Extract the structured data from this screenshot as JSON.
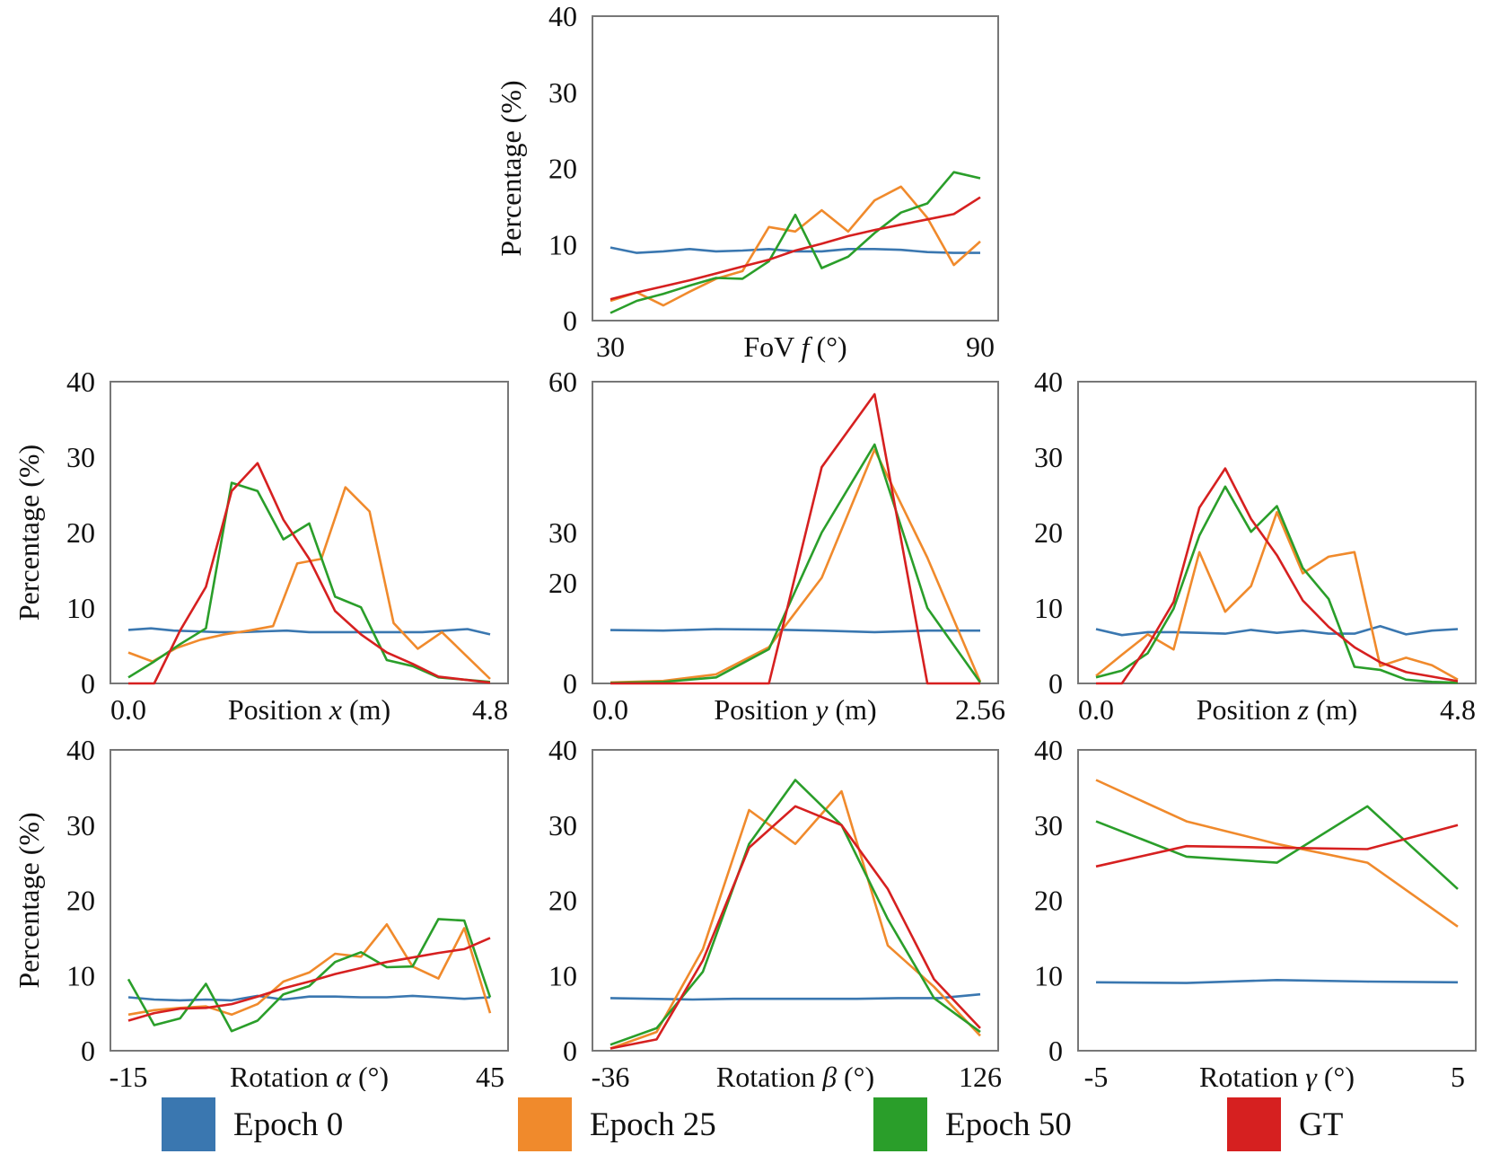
{
  "colors": {
    "epoch0": "#3a77b0",
    "epoch25": "#f08a2c",
    "epoch50": "#2a9e2a",
    "gt": "#d62020",
    "axis": "#777777"
  },
  "legend": [
    {
      "key": "epoch0",
      "label": "Epoch 0"
    },
    {
      "key": "epoch25",
      "label": "Epoch 25"
    },
    {
      "key": "epoch50",
      "label": "Epoch 50"
    },
    {
      "key": "gt",
      "label": "GT"
    }
  ],
  "chart_data": [
    {
      "id": "fov",
      "type": "line",
      "xlabel_main": "FoV ",
      "xlabel_var": "f",
      "xlabel_unit": " (°)",
      "ylabel": "Percentage (%)",
      "x_tick_labels": [
        "30",
        "90"
      ],
      "y_ticks": [
        "0",
        "10",
        "20",
        "30",
        "40"
      ],
      "ylim": [
        0,
        40
      ],
      "series": [
        {
          "key": "epoch0",
          "values": [
            9.6,
            8.9,
            9.1,
            9.4,
            9.1,
            9.2,
            9.4,
            9.1,
            9.1,
            9.4,
            9.4,
            9.3,
            9.0,
            8.9,
            8.9
          ]
        },
        {
          "key": "epoch25",
          "values": [
            2.6,
            3.7,
            2.0,
            3.8,
            5.5,
            6.5,
            12.3,
            11.7,
            14.5,
            11.7,
            15.8,
            17.6,
            13.5,
            7.3,
            10.4
          ]
        },
        {
          "key": "epoch50",
          "values": [
            1.0,
            2.6,
            3.5,
            4.6,
            5.6,
            5.5,
            7.8,
            13.9,
            6.9,
            8.4,
            11.5,
            14.2,
            15.4,
            19.5,
            18.7
          ]
        },
        {
          "key": "gt",
          "values": [
            2.8,
            3.7,
            4.5,
            5.3,
            6.2,
            7.1,
            8.0,
            9.2,
            10.1,
            11.1,
            11.9,
            12.6,
            13.3,
            14.0,
            16.2
          ]
        }
      ]
    },
    {
      "id": "posx",
      "type": "line",
      "xlabel_main": "Position ",
      "xlabel_var": "x",
      "xlabel_unit": " (m)",
      "ylabel": "Percentage (%)",
      "x_tick_labels": [
        "0.0",
        "4.8"
      ],
      "y_ticks": [
        "0",
        "10",
        "20",
        "30",
        "40"
      ],
      "ylim": [
        0,
        40
      ],
      "series": [
        {
          "key": "epoch0",
          "values": [
            7.1,
            7.3,
            7.0,
            6.9,
            6.8,
            6.8,
            6.9,
            7.0,
            6.8,
            6.8,
            6.8,
            6.8,
            6.8,
            6.8,
            7.0,
            7.2,
            6.5
          ]
        },
        {
          "key": "epoch25",
          "values": [
            4.1,
            2.9,
            4.7,
            5.8,
            6.5,
            7.0,
            7.6,
            15.9,
            16.5,
            26.0,
            22.8,
            8.0,
            4.6,
            6.8,
            3.7,
            0.6
          ]
        },
        {
          "key": "epoch50",
          "values": [
            0.8,
            2.9,
            5.2,
            7.3,
            26.6,
            25.5,
            19.1,
            21.2,
            11.5,
            10.1,
            3.1,
            2.3,
            0.8,
            0.5,
            0.2
          ]
        },
        {
          "key": "gt",
          "values": [
            0.0,
            0.0,
            7.0,
            12.8,
            25.5,
            29.2,
            21.7,
            16.5,
            9.6,
            6.5,
            4.1,
            2.6,
            0.9,
            0.5,
            0.1
          ]
        }
      ]
    },
    {
      "id": "posy",
      "type": "line",
      "xlabel_main": "Position ",
      "xlabel_var": "y",
      "xlabel_unit": " (m)",
      "ylabel": "",
      "x_tick_labels": [
        "0.0",
        "2.56"
      ],
      "y_ticks": [
        "0",
        "20",
        "30",
        "60"
      ],
      "ylim": [
        0,
        60
      ],
      "series": [
        {
          "key": "epoch0",
          "values": [
            10.6,
            10.5,
            10.8,
            10.7,
            10.5,
            10.2,
            10.5,
            10.5
          ]
        },
        {
          "key": "epoch25",
          "values": [
            0.2,
            0.5,
            1.8,
            7.2,
            21.0,
            46.5,
            25.0,
            0.3
          ]
        },
        {
          "key": "epoch50",
          "values": [
            0.1,
            0.3,
            1.2,
            6.8,
            30.0,
            47.5,
            15.0,
            0.2
          ]
        },
        {
          "key": "gt",
          "values": [
            0.0,
            0.0,
            0.0,
            0.0,
            43.0,
            57.5,
            0.0,
            0.0
          ]
        }
      ]
    },
    {
      "id": "posz",
      "type": "line",
      "xlabel_main": "Position ",
      "xlabel_var": "z",
      "xlabel_unit": " (m)",
      "ylabel": "",
      "x_tick_labels": [
        "0.0",
        "4.8"
      ],
      "y_ticks": [
        "0",
        "10",
        "20",
        "30",
        "40"
      ],
      "ylim": [
        0,
        40
      ],
      "series": [
        {
          "key": "epoch0",
          "values": [
            7.2,
            6.4,
            6.8,
            6.8,
            6.7,
            6.6,
            7.1,
            6.7,
            7.0,
            6.6,
            6.6,
            7.6,
            6.5,
            7.0,
            7.2
          ]
        },
        {
          "key": "epoch25",
          "values": [
            1.0,
            3.8,
            6.5,
            4.5,
            17.4,
            9.5,
            12.9,
            22.7,
            14.6,
            16.8,
            17.4,
            2.3,
            3.4,
            2.4,
            0.5
          ]
        },
        {
          "key": "epoch50",
          "values": [
            0.8,
            1.7,
            4.0,
            9.9,
            19.6,
            26.1,
            20.1,
            23.5,
            15.3,
            11.2,
            2.2,
            1.8,
            0.5,
            0.2,
            0.1
          ]
        },
        {
          "key": "gt",
          "values": [
            0.0,
            0.0,
            5.0,
            10.8,
            23.3,
            28.5,
            21.8,
            17.0,
            11.0,
            7.5,
            4.8,
            2.8,
            1.5,
            0.9,
            0.3
          ]
        }
      ]
    },
    {
      "id": "rotalpha",
      "type": "line",
      "xlabel_main": "Rotation ",
      "xlabel_var": "α",
      "xlabel_unit": " (°)",
      "ylabel": "Percentage (%)",
      "x_tick_labels": [
        "-15",
        "45"
      ],
      "y_ticks": [
        "0",
        "10",
        "20",
        "30",
        "40"
      ],
      "ylim": [
        0,
        40
      ],
      "series": [
        {
          "key": "epoch0",
          "values": [
            7.1,
            6.8,
            6.7,
            6.8,
            6.7,
            7.3,
            6.8,
            7.2,
            7.2,
            7.1,
            7.1,
            7.3,
            7.1,
            6.9,
            7.1
          ]
        },
        {
          "key": "epoch25",
          "values": [
            4.8,
            5.4,
            5.7,
            5.9,
            4.8,
            6.2,
            9.2,
            10.4,
            12.9,
            12.5,
            16.8,
            11.2,
            9.6,
            16.3,
            5.0
          ]
        },
        {
          "key": "epoch50",
          "values": [
            9.5,
            3.4,
            4.3,
            8.9,
            2.6,
            4.0,
            7.5,
            8.6,
            11.8,
            13.1,
            11.1,
            11.2,
            17.5,
            17.3,
            7.1
          ]
        },
        {
          "key": "gt",
          "values": [
            4.0,
            5.0,
            5.6,
            5.7,
            6.2,
            7.2,
            8.3,
            9.2,
            10.2,
            11.0,
            11.8,
            12.4,
            13.0,
            13.5,
            15.0
          ]
        }
      ]
    },
    {
      "id": "rotbeta",
      "type": "line",
      "xlabel_main": "Rotation ",
      "xlabel_var": "β",
      "xlabel_unit": " (°)",
      "ylabel": "",
      "x_tick_labels": [
        "-36",
        "126"
      ],
      "y_ticks": [
        "0",
        "10",
        "20",
        "30",
        "40"
      ],
      "ylim": [
        0,
        40
      ],
      "series": [
        {
          "key": "epoch0",
          "values": [
            7.0,
            6.9,
            6.8,
            6.9,
            6.9,
            6.9,
            6.9,
            7.0,
            7.0,
            7.5
          ]
        },
        {
          "key": "epoch25",
          "values": [
            0.3,
            2.5,
            13.5,
            32.0,
            27.5,
            34.5,
            14.0,
            8.5,
            2.0
          ]
        },
        {
          "key": "epoch50",
          "values": [
            0.8,
            3.0,
            10.5,
            27.5,
            36.0,
            30.0,
            17.5,
            7.0,
            2.5
          ]
        },
        {
          "key": "gt",
          "values": [
            0.3,
            1.5,
            12.0,
            27.0,
            32.5,
            30.0,
            21.5,
            9.5,
            3.0
          ]
        }
      ]
    },
    {
      "id": "rotgamma",
      "type": "line",
      "xlabel_main": "Rotation ",
      "xlabel_var": "γ",
      "xlabel_unit": " (°)",
      "ylabel": "",
      "x_tick_labels": [
        "-5",
        "5"
      ],
      "y_ticks": [
        "0",
        "10",
        "20",
        "30",
        "40"
      ],
      "ylim": [
        0,
        40
      ],
      "series": [
        {
          "key": "epoch0",
          "values": [
            9.1,
            9.0,
            9.4,
            9.2,
            9.1
          ]
        },
        {
          "key": "epoch25",
          "values": [
            36.0,
            30.5,
            27.5,
            25.0,
            16.5
          ]
        },
        {
          "key": "epoch50",
          "values": [
            30.5,
            25.8,
            25.0,
            32.5,
            21.5
          ]
        },
        {
          "key": "gt",
          "values": [
            24.5,
            27.2,
            27.0,
            26.8,
            30.0
          ]
        }
      ]
    }
  ]
}
